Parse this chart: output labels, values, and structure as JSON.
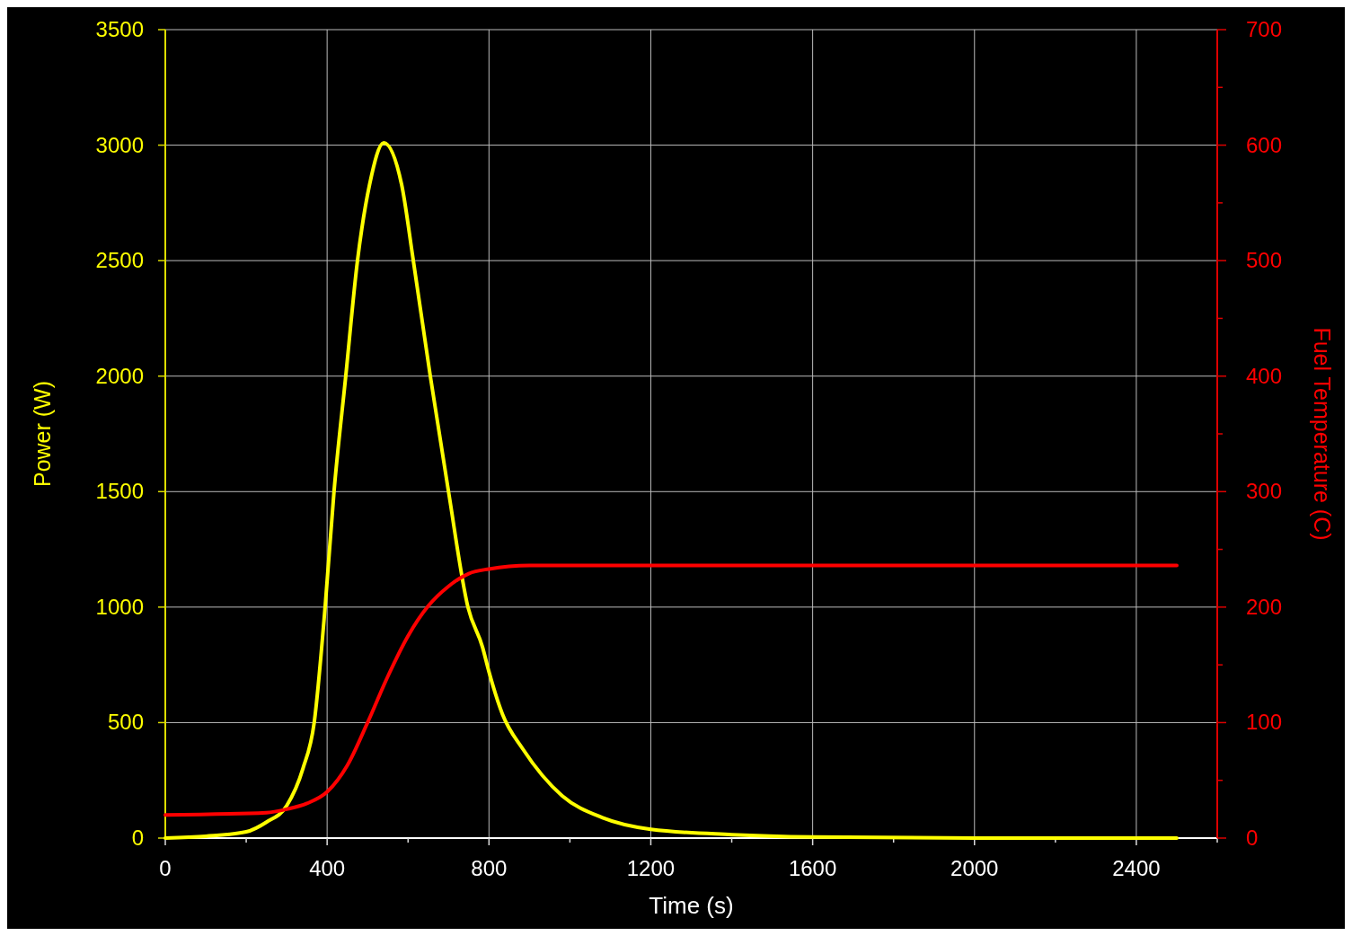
{
  "chart_data": {
    "type": "line",
    "xlabel": "Time (s)",
    "ylabel": "Power (W)",
    "y2label": "Fuel Temperature (C)",
    "xlim": [
      0,
      2600
    ],
    "xticks": [
      0,
      {
        "value": 200,
        "label": null
      },
      400,
      {
        "value": 600,
        "label": null
      },
      800,
      {
        "value": 1000,
        "label": null
      },
      1200,
      {
        "value": 1400,
        "label": null
      },
      1600,
      {
        "value": 1800,
        "label": null
      },
      2000,
      {
        "value": 2200,
        "label": null
      },
      2400,
      {
        "value": 2600,
        "label": null
      }
    ],
    "ylim": [
      0,
      3500
    ],
    "yticks": [
      0,
      500,
      1000,
      1500,
      2000,
      2500,
      3000,
      3500
    ],
    "y2lim": [
      0,
      700
    ],
    "y2ticks": [
      0,
      {
        "value": 50,
        "label": null
      },
      100,
      {
        "value": 150,
        "label": null
      },
      200,
      {
        "value": 250,
        "label": null
      },
      300,
      {
        "value": 350,
        "label": null
      },
      400,
      {
        "value": 450,
        "label": null
      },
      500,
      {
        "value": 550,
        "label": null
      },
      600,
      {
        "value": 650,
        "label": null
      },
      700
    ],
    "grid": true,
    "marker": "none",
    "line_style": "solid",
    "series": [
      {
        "color": "#ffff00",
        "x": [
          0,
          100,
          200,
          250,
          300,
          340,
          368,
          395,
          417,
          446,
          475,
          505,
          540,
          584,
          613,
          655,
          700,
          748,
          784,
          800,
          833,
          884,
          981,
          1081,
          1200,
          1400,
          1600,
          2000,
          2500
        ],
        "values": [
          0,
          8,
          27,
          69,
          140,
          300,
          500,
          1000,
          1500,
          2000,
          2500,
          2830,
          3010,
          2830,
          2500,
          2000,
          1500,
          1000,
          827,
          720,
          538,
          385,
          183,
          88,
          38,
          15,
          5,
          0,
          0
        ]
      },
      {
        "color": "#ff0000",
        "axis": "y2",
        "x": [
          0,
          250,
          300,
          350,
          400,
          450,
          500,
          550,
          600,
          650,
          700,
          750,
          800,
          900,
          1000,
          1400,
          2000,
          2500
        ],
        "values": [
          20,
          22,
          25,
          30,
          40,
          63,
          100,
          140,
          175,
          201,
          218,
          229,
          233,
          236,
          236,
          236,
          236,
          236
        ]
      }
    ]
  }
}
